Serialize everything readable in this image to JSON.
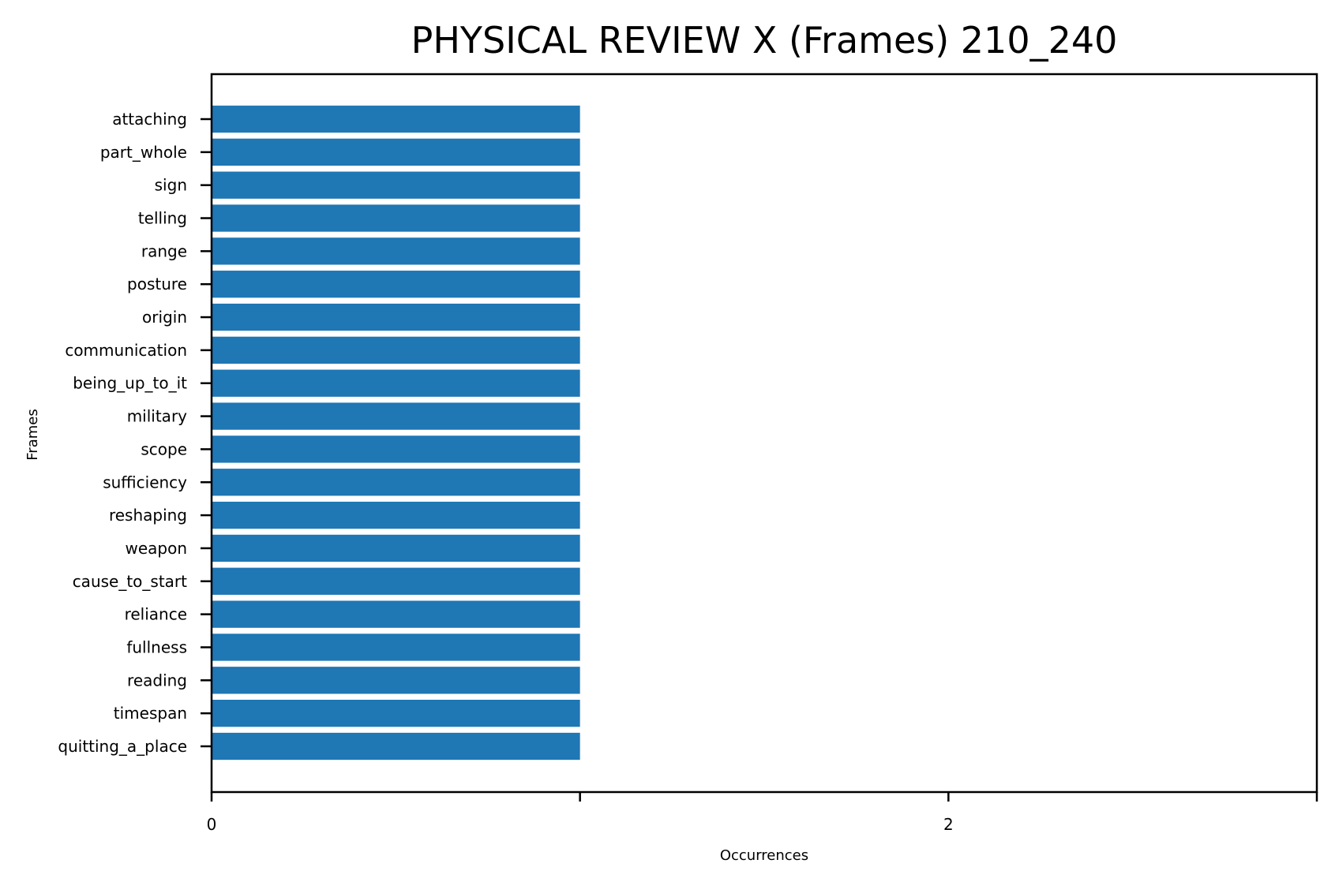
{
  "chart_data": {
    "type": "bar",
    "orientation": "horizontal",
    "title": "PHYSICAL REVIEW X (Frames) 210_240",
    "xlabel": "Occurrences",
    "ylabel": "Frames",
    "categories": [
      "attaching",
      "part_whole",
      "sign",
      "telling",
      "range",
      "posture",
      "origin",
      "communication",
      "being_up_to_it",
      "military",
      "scope",
      "sufficiency",
      "reshaping",
      "weapon",
      "cause_to_start",
      "reliance",
      "fullness",
      "reading",
      "timespan",
      "quitting_a_place"
    ],
    "values": [
      1,
      1,
      1,
      1,
      1,
      1,
      1,
      1,
      1,
      1,
      1,
      1,
      1,
      1,
      1,
      1,
      1,
      1,
      1,
      1
    ],
    "xlim": [
      0,
      3
    ],
    "xticks": [
      0,
      1,
      2,
      3
    ],
    "xtick_labels": [
      "0",
      "",
      "2",
      ""
    ],
    "bar_color": "#1f77b4",
    "grid": false,
    "legend": false
  }
}
